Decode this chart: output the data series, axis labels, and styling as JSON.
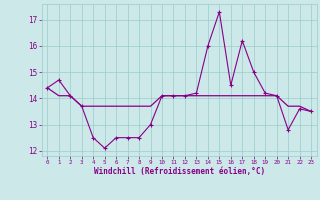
{
  "x": [
    0,
    1,
    2,
    3,
    4,
    5,
    6,
    7,
    8,
    9,
    10,
    11,
    12,
    13,
    14,
    15,
    16,
    17,
    18,
    19,
    20,
    21,
    22,
    23
  ],
  "line1_y": [
    14.4,
    14.7,
    14.1,
    13.7,
    12.5,
    12.1,
    12.5,
    12.5,
    12.5,
    13.0,
    14.1,
    14.1,
    14.1,
    14.2,
    16.0,
    17.3,
    14.5,
    16.2,
    15.0,
    14.2,
    14.1,
    12.8,
    13.6,
    13.5
  ],
  "line2_y": [
    14.4,
    14.1,
    14.1,
    13.7,
    13.7,
    13.7,
    13.7,
    13.7,
    13.7,
    13.7,
    14.1,
    14.1,
    14.1,
    14.1,
    14.1,
    14.1,
    14.1,
    14.1,
    14.1,
    14.1,
    14.1,
    13.7,
    13.7,
    13.5
  ],
  "line_color": "#880088",
  "bg_color": "#cce8e8",
  "grid_color": "#99cccc",
  "ylim": [
    11.8,
    17.6
  ],
  "yticks": [
    12,
    13,
    14,
    15,
    16,
    17
  ],
  "xtick_labels": [
    "0",
    "1",
    "2",
    "3",
    "4",
    "5",
    "6",
    "7",
    "8",
    "9",
    "10",
    "11",
    "12",
    "13",
    "14",
    "15",
    "16",
    "17",
    "18",
    "19",
    "20",
    "21",
    "22",
    "23"
  ],
  "xlabel": "Windchill (Refroidissement éolien,°C)",
  "text_color": "#880088"
}
